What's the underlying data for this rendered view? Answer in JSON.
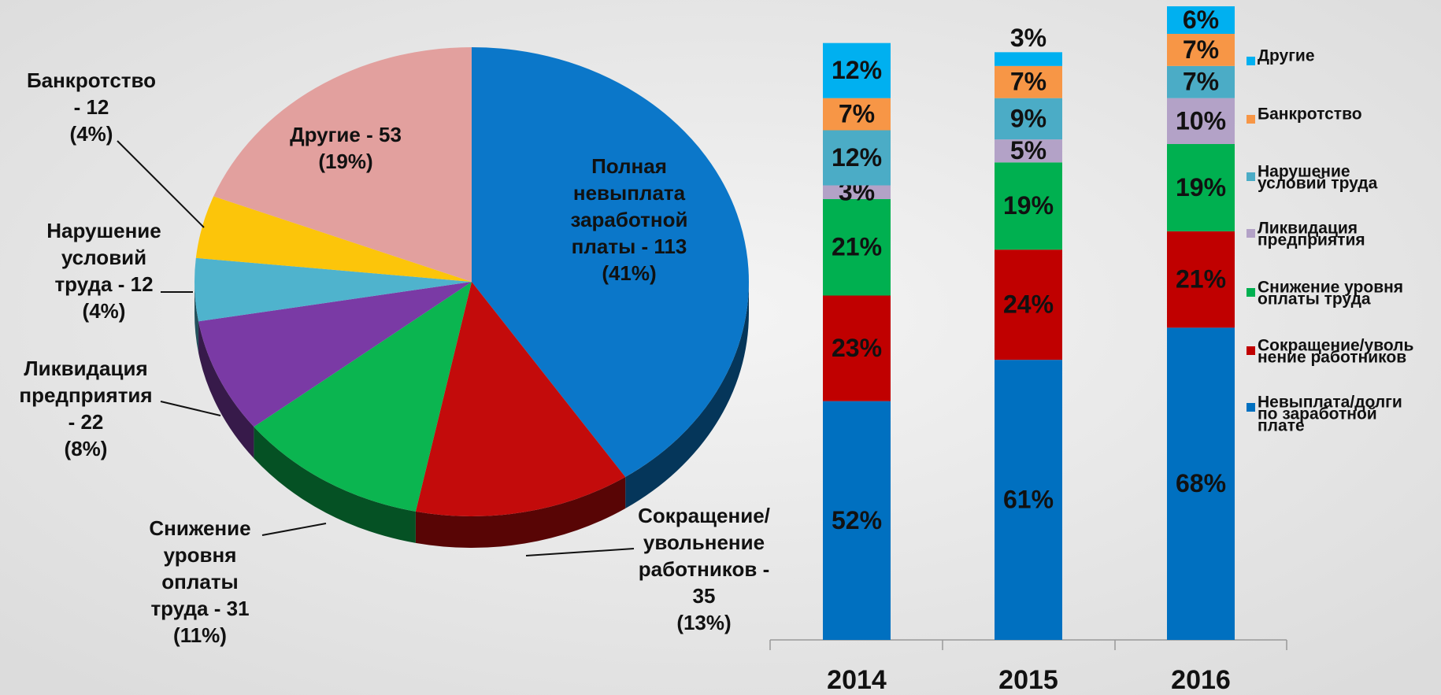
{
  "chart_data": [
    {
      "type": "pie",
      "categories": [
        "Полная невыплата заработной платы",
        "Сокращение/увольнение работников",
        "Снижение уровня оплаты труда",
        "Ликвидация предприятия",
        "Нарушение условий труда",
        "Банкротство",
        "Другие"
      ],
      "values": [
        113,
        35,
        31,
        22,
        12,
        12,
        53
      ],
      "labels": [
        [
          "Полная",
          "невыплата",
          "заработной",
          "платы - 113",
          "(41%)"
        ],
        [
          "Сокращение/",
          "увольнение",
          "работников -",
          "35",
          "(13%)"
        ],
        [
          "Снижение",
          "уровня",
          "оплаты",
          "труда - 31",
          "(11%)"
        ],
        [
          "Ликвидация",
          "предприятия",
          "- 22",
          "(8%)"
        ],
        [
          "Нарушение",
          "условий",
          "труда - 12",
          "(4%)"
        ],
        [
          "Банкротство",
          "- 12",
          "(4%)"
        ],
        [
          "Другие - 53",
          "(19%)"
        ]
      ],
      "colors": [
        "#0b77c9",
        "#c30b0b",
        "#0bb550",
        "#7a3aa5",
        "#4fb3cd",
        "#fcc50a",
        "#e2a09e"
      ]
    },
    {
      "type": "stacked_bar",
      "categories": [
        "2014",
        "2015",
        "2016"
      ],
      "series": [
        {
          "name": [
            "Невыплата/долги",
            "по заработной",
            "плате"
          ],
          "color": "#0070c0",
          "values": [
            52,
            61,
            68
          ],
          "value_labels": [
            "52%",
            "61%",
            "68%"
          ]
        },
        {
          "name": [
            "Сокращение/уволь",
            "нение работников"
          ],
          "color": "#c00000",
          "values": [
            23,
            24,
            21
          ],
          "value_labels": [
            "23%",
            "24%",
            "21%"
          ]
        },
        {
          "name": [
            "Снижение уровня",
            "оплаты труда"
          ],
          "color": "#00b050",
          "values": [
            21,
            19,
            19
          ],
          "value_labels": [
            "21%",
            "19%",
            "19%"
          ]
        },
        {
          "name": [
            "Ликвидация",
            "предприятия"
          ],
          "color": "#b3a2c7",
          "values": [
            3,
            5,
            10
          ],
          "value_labels": [
            "3%",
            "5%",
            "10%"
          ]
        },
        {
          "name": [
            "Нарушение",
            "условий труда"
          ],
          "color": "#4bacc6",
          "values": [
            12,
            9,
            7
          ],
          "value_labels": [
            "12%",
            "9%",
            "7%"
          ]
        },
        {
          "name": [
            "Банкротство"
          ],
          "color": "#f79646",
          "values": [
            7,
            7,
            7
          ],
          "value_labels": [
            "7%",
            "7%",
            "7%"
          ]
        },
        {
          "name": [
            "Другие"
          ],
          "color": "#00b0f0",
          "values": [
            12,
            3,
            6
          ],
          "value_labels": [
            "12%",
            "3%",
            "6%"
          ]
        }
      ]
    }
  ]
}
